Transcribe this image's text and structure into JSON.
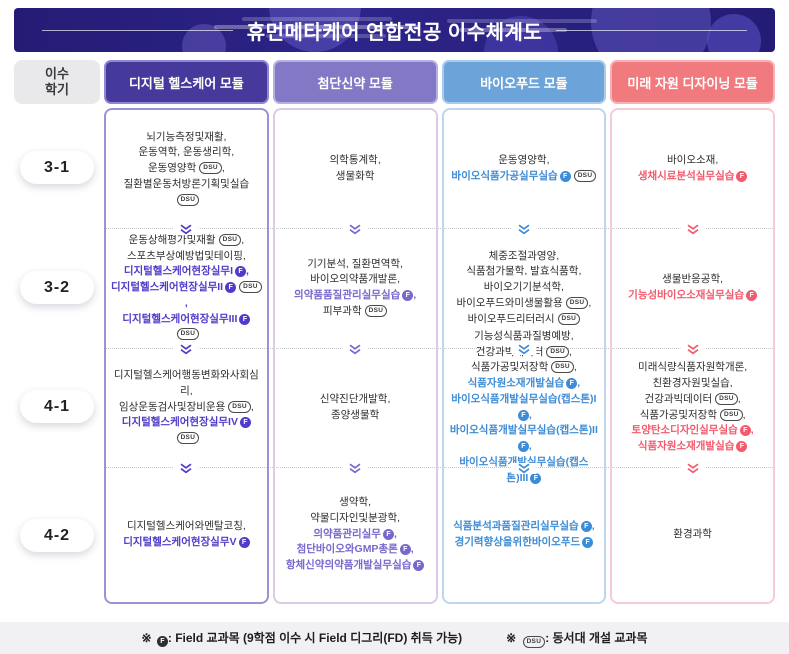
{
  "title": "휴먼메타케어 연합전공 이수체계도",
  "semester_header": {
    "line1": "이수",
    "line2": "학기"
  },
  "semesters": [
    "3-1",
    "3-2",
    "4-1",
    "4-2"
  ],
  "badges": {
    "field": "F",
    "dsu": "DSU"
  },
  "footer": {
    "marker": "※",
    "field_note": ": Field 교과목 (9학점 이수 시 Field 디그리(FD) 취득 가능)",
    "dsu_note": ": 동서대 개설 교과목"
  },
  "columns": [
    {
      "header": "디지털 헬스케어 모듈",
      "colors": {
        "header_bg": "#453a9b",
        "header_border": "#8f86d4",
        "card_border": "#9a93d4",
        "accent": "#4f3dc8"
      },
      "rows": [
        [
          {
            "t": "뇌기능측정및재활",
            "comma": true
          },
          {
            "t": "운동역학, 운동생리학",
            "comma": true
          },
          {
            "t": "운동영양학",
            "dsu": true,
            "comma": true
          },
          {
            "t": "질환별운동처방론기획및실습",
            "dsu": true
          }
        ],
        [
          {
            "t": "운동상해평가및재활",
            "dsu": true,
            "comma": true
          },
          {
            "t": "스포츠부상예방법및테이핑",
            "comma": true
          },
          {
            "t": "디지털헬스케어현장실무I",
            "f": true,
            "a": true,
            "comma": true
          },
          {
            "t": "디지털헬스케어현장실무II",
            "f": true,
            "dsu": true,
            "a": true,
            "comma": true
          },
          {
            "t": "디지털헬스케어현장실무III",
            "f": true,
            "dsu": true,
            "a": true
          }
        ],
        [
          {
            "t": "디지털헬스케어행동변화와사회심리",
            "comma": true
          },
          {
            "t": "임상운동검사및장비운용",
            "dsu": true,
            "comma": true
          },
          {
            "t": "디지털헬스케어현장실무IV",
            "f": true,
            "dsu": true,
            "a": true
          }
        ],
        [
          {
            "t": "디지털헬스케어와멘탈코칭",
            "comma": true
          },
          {
            "t": "디지털헬스케어현장실무V",
            "f": true,
            "a": true
          }
        ]
      ]
    },
    {
      "header": "첨단신약 모듈",
      "colors": {
        "header_bg": "#8278c5",
        "header_border": "#b7afe0",
        "card_border": "#d9cce4",
        "accent": "#7768cd"
      },
      "rows": [
        [
          {
            "t": "의학통계학",
            "comma": true
          },
          {
            "t": "생물화학"
          }
        ],
        [
          {
            "t": "기기분석, 질환면역학",
            "comma": true
          },
          {
            "t": "바이오의약품개발론",
            "comma": true
          },
          {
            "t": "의약품품질관리실무실습",
            "f": true,
            "a": true,
            "comma": true
          },
          {
            "t": "피부과학",
            "dsu": true
          }
        ],
        [
          {
            "t": "신약진단개발학",
            "comma": true
          },
          {
            "t": "종양생물학"
          }
        ],
        [
          {
            "t": "생약학",
            "comma": true
          },
          {
            "t": "약물디자인및분광학",
            "comma": true
          },
          {
            "t": "의약품관리실무",
            "f": true,
            "a": true,
            "comma": true
          },
          {
            "t": "첨단바이오와GMP총론",
            "f": true,
            "a": true,
            "comma": true
          },
          {
            "t": "항체신약의약품개발실무실습",
            "f": true,
            "a": true
          }
        ]
      ]
    },
    {
      "header": "바이오푸드 모듈",
      "colors": {
        "header_bg": "#6ca4d9",
        "header_border": "#aacbe9",
        "card_border": "#bdd6ed",
        "accent": "#3e8cd5"
      },
      "rows": [
        [
          {
            "t": "운동영양학",
            "comma": true
          },
          {
            "t": "바이오식품가공실무실습",
            "f": true,
            "dsu": true,
            "a": true
          }
        ],
        [
          {
            "t": "체중조절과영양",
            "comma": true
          },
          {
            "t": "식품첨가물학, 발효식품학",
            "comma": true
          },
          {
            "t": "바이오기기분석학",
            "comma": true
          },
          {
            "t": "바이오푸드와미생물활용",
            "dsu": true,
            "comma": true
          },
          {
            "t": "바이오푸드리터러시",
            "dsu": true
          }
        ],
        [
          {
            "t": "기능성식품과질병예방",
            "comma": true
          },
          {
            "t": "건강과빅데이터",
            "dsu": true,
            "comma": true
          },
          {
            "t": "식품가공및저장학",
            "dsu": true,
            "comma": true
          },
          {
            "t": "식품자원소재개발실습",
            "f": true,
            "a": true,
            "comma": true
          },
          {
            "t": "바이오식품개발실무실습(캡스톤)I",
            "f": true,
            "a": true,
            "comma": true
          },
          {
            "t": "바이오식품개발실무실습(캡스톤)II",
            "f": true,
            "a": true,
            "comma": true
          },
          {
            "t": "바이오식품개발실무실습(캡스톤)III",
            "f": true,
            "a": true
          }
        ],
        [
          {
            "t": "식품분석과품질관리실무실습",
            "f": true,
            "a": true,
            "comma": true
          },
          {
            "t": "경기력향상을위한바이오푸드",
            "f": true,
            "a": true
          }
        ]
      ]
    },
    {
      "header": "미래 자원 디자이닝 모듈",
      "colors": {
        "header_bg": "#f07a7d",
        "header_border": "#f6b0b6",
        "card_border": "#f6cbd4",
        "accent": "#f25b6e"
      },
      "rows": [
        [
          {
            "t": "바이오소재",
            "comma": true
          },
          {
            "t": "생채시료분석실무실습",
            "f": true,
            "a": true
          }
        ],
        [
          {
            "t": "생물반응공학",
            "comma": true
          },
          {
            "t": "기능성바이오소재실무실습",
            "f": true,
            "a": true
          }
        ],
        [
          {
            "t": "미래식량식품자원학개론",
            "comma": true
          },
          {
            "t": "친환경자원및실습",
            "comma": true
          },
          {
            "t": "건강과빅데이터",
            "dsu": true,
            "comma": true
          },
          {
            "t": "식품가공및저장학",
            "dsu": true,
            "comma": true
          },
          {
            "t": "토양탄소디자인실무실습",
            "f": true,
            "a": true,
            "comma": true
          },
          {
            "t": "식품자원소재개발실습",
            "f": true,
            "a": true
          }
        ],
        [
          {
            "t": "환경과학"
          }
        ]
      ]
    }
  ]
}
